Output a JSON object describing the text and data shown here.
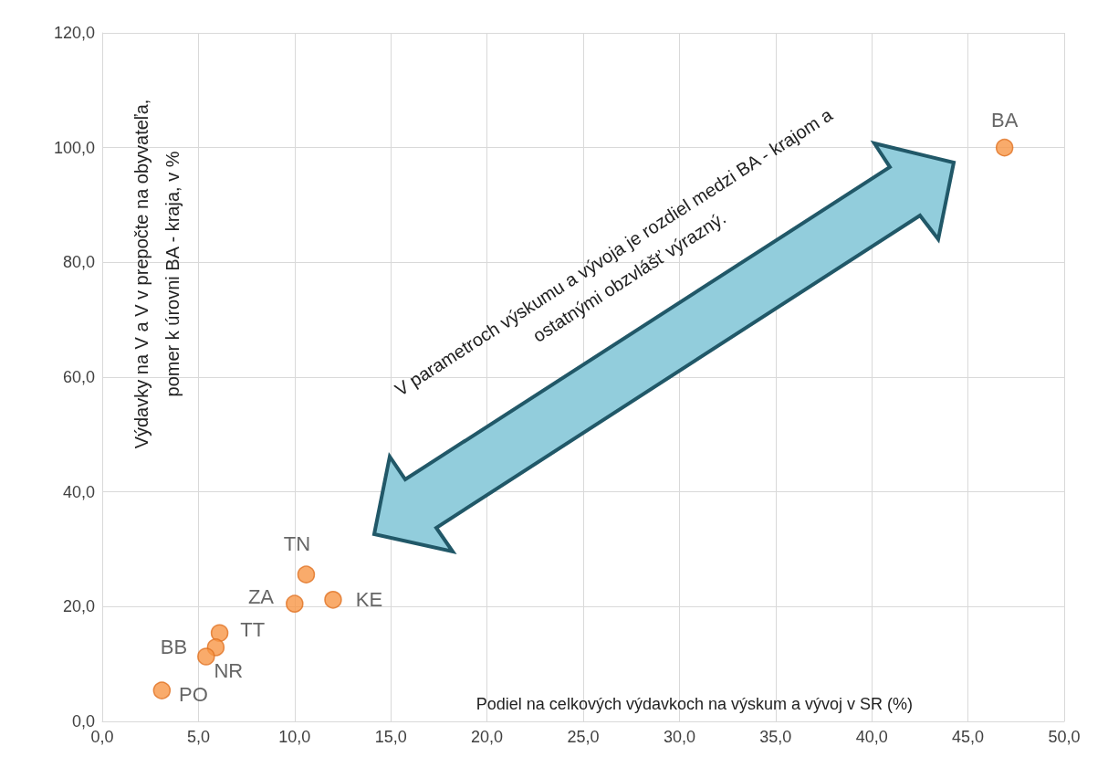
{
  "chart_data": {
    "type": "scatter",
    "xlabel": "Podiel na celkových výdavkoch na výskum a vývoj v SR (%)",
    "ylabel": "Výdavky na V a V v prepočte na obyvateľa,\npomer k úrovni BA - kraja, v %",
    "annotations": [
      "V parametroch výskumu a vývoja je rozdiel medzi BA - krajom a\nostatnými obzvlášť výrazný."
    ],
    "series": [
      {
        "name": "BA",
        "color": "#f79646",
        "x": [
          46.9
        ],
        "values": [
          100.0
        ]
      },
      {
        "name": "TN",
        "color": "#f79646",
        "x": [
          10.6
        ],
        "values": [
          25.6
        ]
      },
      {
        "name": "ZA",
        "color": "#f79646",
        "x": [
          10.0
        ],
        "values": [
          20.5
        ]
      },
      {
        "name": "KE",
        "color": "#f79646",
        "x": [
          12.0
        ],
        "values": [
          21.2
        ]
      },
      {
        "name": "TT",
        "color": "#f79646",
        "x": [
          6.1
        ],
        "values": [
          15.4
        ]
      },
      {
        "name": "NR",
        "color": "#f79646",
        "x": [
          5.9
        ],
        "values": [
          12.9
        ]
      },
      {
        "name": "BB",
        "color": "#f79646",
        "x": [
          5.4
        ],
        "values": [
          11.3
        ]
      },
      {
        "name": "PO",
        "color": "#f79646",
        "x": [
          3.1
        ],
        "values": [
          5.4
        ]
      }
    ],
    "xlim": [
      0,
      50
    ],
    "xticks": [
      {
        "value": 0,
        "label": "0,0"
      },
      {
        "value": 5,
        "label": "5,0"
      },
      {
        "value": 10,
        "label": "10,0"
      },
      {
        "value": 15,
        "label": "15,0"
      },
      {
        "value": 20,
        "label": "20,0"
      },
      {
        "value": 25,
        "label": "25,0"
      },
      {
        "value": 30,
        "label": "30,0"
      },
      {
        "value": 35,
        "label": "35,0"
      },
      {
        "value": 40,
        "label": "40,0"
      },
      {
        "value": 45,
        "label": "45,0"
      },
      {
        "value": 50,
        "label": "50,0"
      }
    ],
    "ylim": [
      0,
      120
    ],
    "yticks": [
      {
        "value": 0,
        "label": "0,0"
      },
      {
        "value": 20,
        "label": "20,0"
      },
      {
        "value": 40,
        "label": "40,0"
      },
      {
        "value": 60,
        "label": "60,0"
      },
      {
        "value": 80,
        "label": "80,0"
      },
      {
        "value": 100,
        "label": "100,0"
      },
      {
        "value": 120,
        "label": "120,0"
      }
    ],
    "grid": true,
    "legend": false,
    "marker": "circle"
  }
}
